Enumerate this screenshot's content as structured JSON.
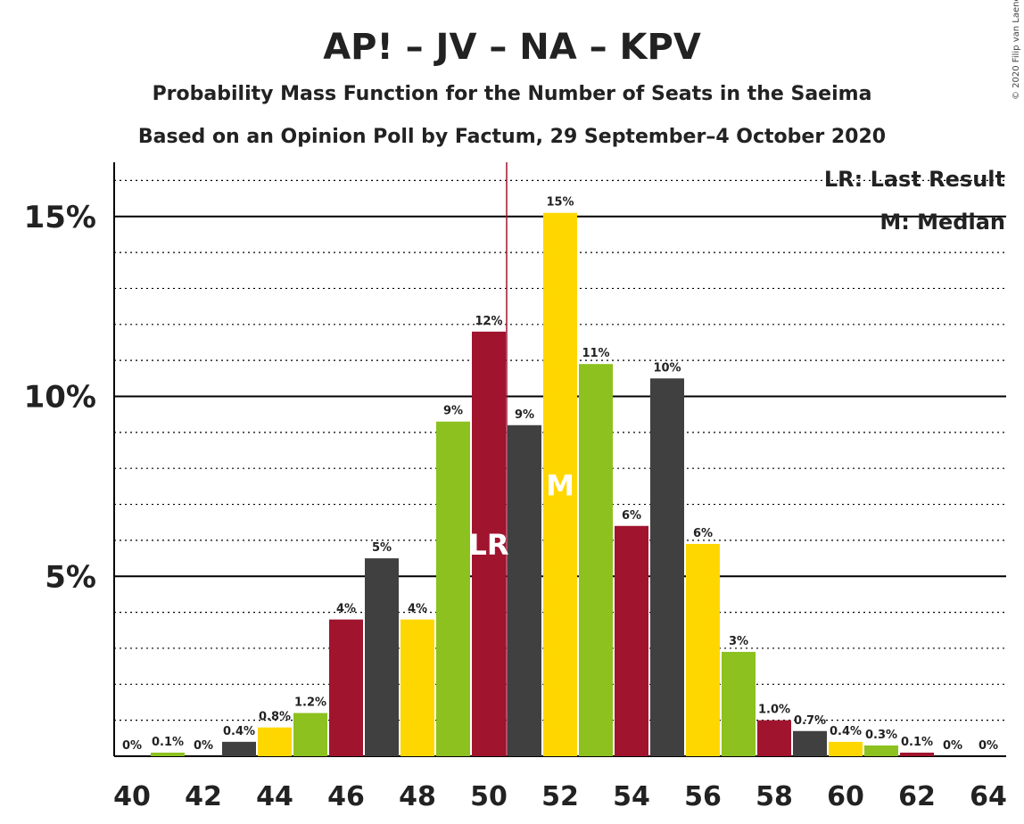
{
  "title": "AP! – JV – NA – KPV",
  "subtitle1": "Probability Mass Function for the Number of Seats in the Saeima",
  "subtitle2": "Based on an Opinion Poll by Factum, 29 September–4 October 2020",
  "credit": "© 2020 Filip van Laenen",
  "legend": {
    "lr": "LR: Last Result",
    "m": "M: Median"
  },
  "markers": {
    "lr_text": "LR",
    "lr_seat": 50,
    "m_text": "M",
    "m_seat": 52,
    "last_result_line": 50.5
  },
  "colors": {
    "red": "#A0142E",
    "dark": "#404040",
    "yellow": "#FFD700",
    "green": "#8CC11F",
    "lr_line": "#A0142E"
  },
  "chart_data": {
    "type": "bar",
    "x": [
      40,
      41,
      42,
      43,
      44,
      45,
      46,
      47,
      48,
      49,
      50,
      51,
      52,
      53,
      54,
      55,
      56,
      57,
      58,
      59,
      60,
      61,
      62,
      63,
      64
    ],
    "values": [
      0,
      0.1,
      0,
      0.4,
      0.8,
      1.2,
      3.8,
      5.5,
      3.8,
      9.3,
      11.8,
      9.2,
      15.1,
      10.9,
      6.4,
      10.5,
      5.9,
      2.9,
      1.0,
      0.7,
      0.4,
      0.3,
      0.1,
      0,
      0
    ],
    "labels": [
      "0%",
      "0.1%",
      "0%",
      "0.4%",
      "0.8%",
      "1.2%",
      "4%",
      "5%",
      "4%",
      "9%",
      "12%",
      "9%",
      "15%",
      "11%",
      "6%",
      "10%",
      "6%",
      "3%",
      "1.0%",
      "0.7%",
      "0.4%",
      "0.3%",
      "0.1%",
      "0%",
      "0%"
    ],
    "bar_colors": [
      "yellow",
      "green",
      "red",
      "dark",
      "yellow",
      "green",
      "red",
      "dark",
      "yellow",
      "green",
      "red",
      "dark",
      "yellow",
      "green",
      "red",
      "dark",
      "yellow",
      "green",
      "red",
      "dark",
      "yellow",
      "green",
      "red",
      "dark",
      "yellow"
    ],
    "x_tick_labels": [
      "40",
      "42",
      "44",
      "46",
      "48",
      "50",
      "52",
      "54",
      "56",
      "58",
      "60",
      "62",
      "64"
    ],
    "y_tick_labels": [
      "5%",
      "10%",
      "15%"
    ],
    "ylim": [
      0,
      16.5
    ],
    "xlabel": "",
    "ylabel": ""
  }
}
